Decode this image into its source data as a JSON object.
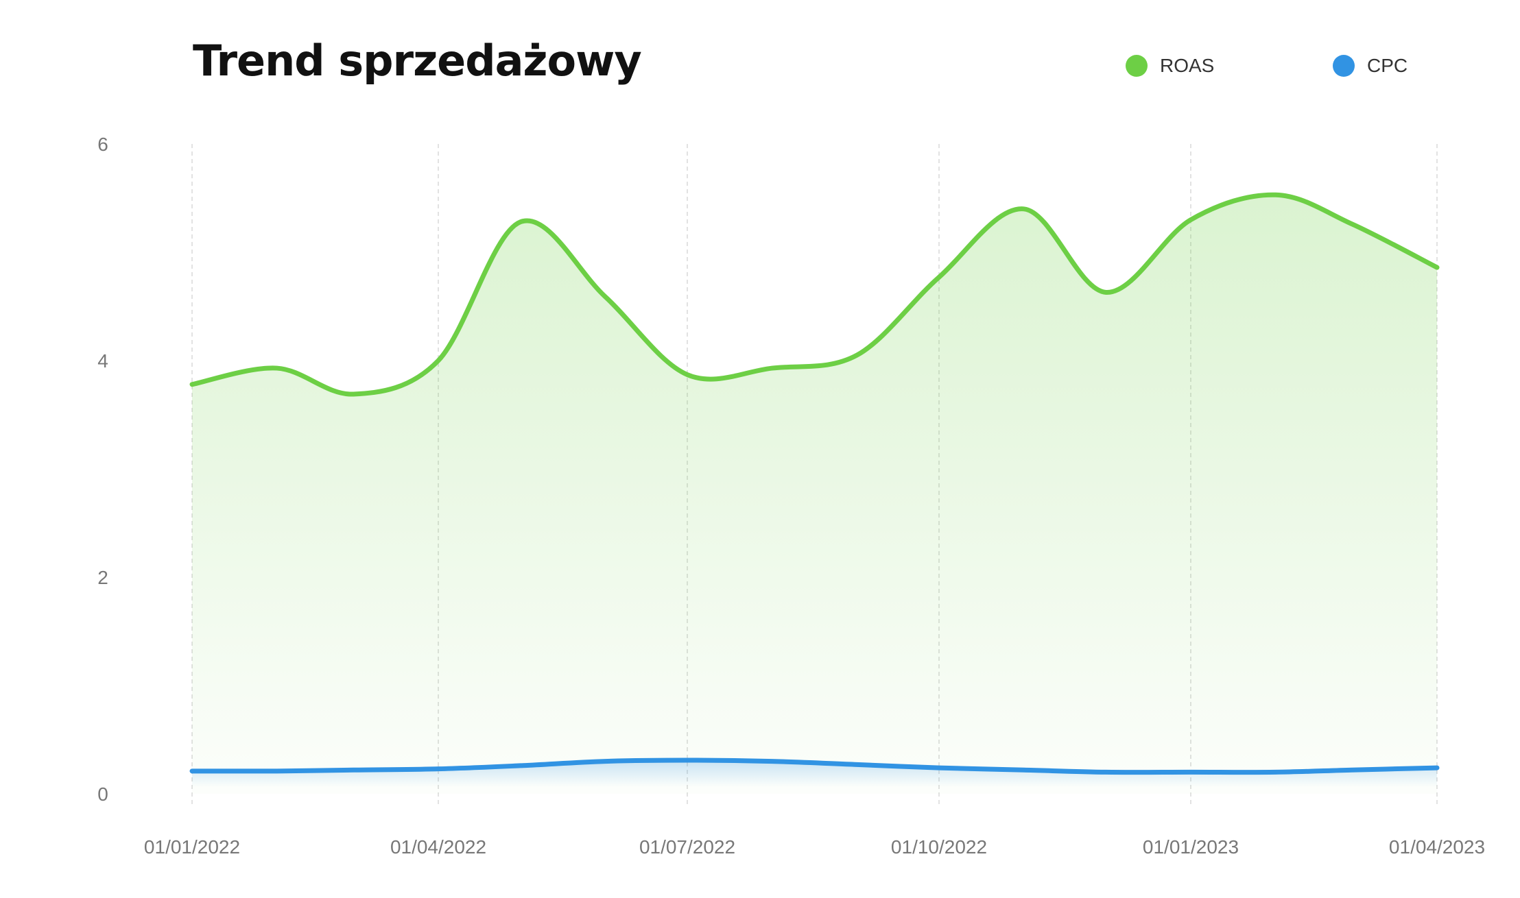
{
  "chart_data": {
    "type": "area",
    "title": "Trend sprzedażowy",
    "x": [
      "2022-01-01",
      "2022-02-01",
      "2022-03-01",
      "2022-04-01",
      "2022-05-01",
      "2022-06-01",
      "2022-07-01",
      "2022-08-01",
      "2022-09-01",
      "2022-10-01",
      "2022-11-01",
      "2022-12-01",
      "2023-01-01",
      "2023-02-01",
      "2023-03-01",
      "2023-04-01"
    ],
    "series": [
      {
        "name": "ROAS",
        "color": "#6dcf45",
        "fill": "gradient",
        "values": [
          3.78,
          3.93,
          3.69,
          4.0,
          5.28,
          4.59,
          3.87,
          3.93,
          4.05,
          4.77,
          5.4,
          4.63,
          5.3,
          5.53,
          5.26,
          4.86
        ]
      },
      {
        "name": "CPC",
        "color": "#3193e3",
        "fill": "gradient",
        "values": [
          0.21,
          0.21,
          0.22,
          0.23,
          0.26,
          0.3,
          0.31,
          0.3,
          0.27,
          0.24,
          0.22,
          0.2,
          0.2,
          0.2,
          0.22,
          0.24
        ]
      }
    ],
    "xticks": [
      "01/01/2022",
      "01/04/2022",
      "01/07/2022",
      "01/10/2022",
      "01/01/2023",
      "01/04/2023"
    ],
    "xtick_dates": [
      "2022-01-01",
      "2022-04-01",
      "2022-07-01",
      "2022-10-01",
      "2023-01-01",
      "2023-04-01"
    ],
    "yticks": [
      "0",
      "2",
      "4",
      "6"
    ],
    "ylim": [
      0,
      6
    ],
    "xlabel": "",
    "ylabel": "",
    "grid": "vertical dashed",
    "legend": "top-right",
    "curve": "smooth"
  }
}
